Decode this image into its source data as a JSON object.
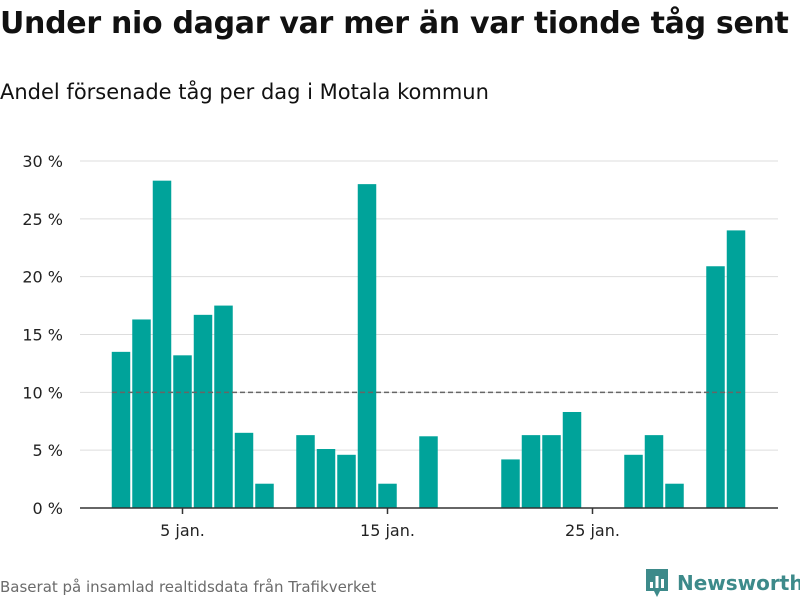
{
  "header": {
    "title": "Under nio dagar var mer än var tionde tåg sent",
    "subtitle": "Andel försenade tåg per dag i Motala kommun"
  },
  "footer": {
    "source": "Baserat på insamlad realtidsdata från Trafikverket",
    "brand": "Newsworthy"
  },
  "colors": {
    "bar": "#00a39a",
    "grid": "#dddddd",
    "reference_line": "#666666",
    "axis": "#333333",
    "brand": "#3d8a8a"
  },
  "chart_data": {
    "type": "bar",
    "title": "Andel försenade tåg per dag i Motala kommun",
    "xlabel": "",
    "ylabel": "",
    "ylim": [
      0,
      30
    ],
    "y_ticks": [
      0,
      5,
      10,
      15,
      20,
      25,
      30
    ],
    "y_tick_labels": [
      "0 %",
      "5 %",
      "10 %",
      "15 %",
      "20 %",
      "25 %",
      "30 %"
    ],
    "x_ticks": [
      {
        "day": 5,
        "label": "5 jan."
      },
      {
        "day": 15,
        "label": "15 jan."
      },
      {
        "day": 25,
        "label": "25 jan."
      }
    ],
    "grid": true,
    "reference_line": {
      "value": 10,
      "style": "dashed"
    },
    "days": [
      1,
      2,
      3,
      4,
      5,
      6,
      7,
      8,
      9,
      10,
      11,
      12,
      13,
      14,
      15,
      16,
      17,
      18,
      19,
      20,
      21,
      22,
      23,
      24,
      25,
      26,
      27,
      28,
      29,
      30,
      31,
      32
    ],
    "values": [
      0,
      13.5,
      16.3,
      28.3,
      13.2,
      16.7,
      17.5,
      6.5,
      2.1,
      0,
      6.3,
      5.1,
      4.6,
      28.0,
      2.1,
      0,
      6.2,
      0,
      0,
      0,
      4.2,
      6.3,
      6.3,
      8.3,
      0,
      0,
      4.6,
      6.3,
      2.1,
      0,
      20.9,
      24.0
    ]
  }
}
